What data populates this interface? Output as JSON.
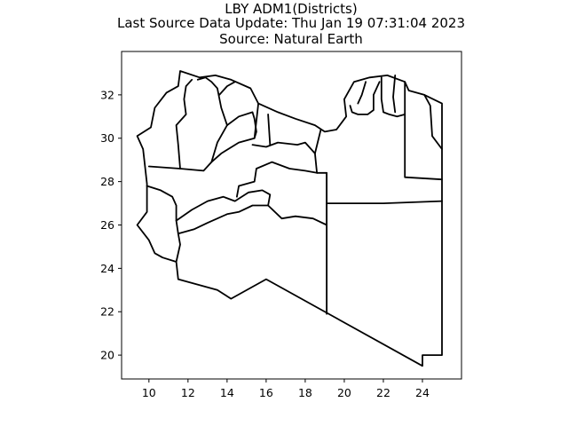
{
  "chart_data": {
    "type": "map",
    "title": [
      "LBY ADM1(Districts)",
      "Last Source Data Update: Thu Jan 19 07:31:04 2023",
      "Source: Natural Earth"
    ],
    "x_ticks": [
      10,
      12,
      14,
      16,
      18,
      20,
      22,
      24
    ],
    "y_ticks": [
      20,
      22,
      24,
      26,
      28,
      30,
      32
    ],
    "xlim": [
      8.6,
      26.0
    ],
    "ylim": [
      18.9,
      34.0
    ],
    "xlabel": "",
    "ylabel": "",
    "grid": false,
    "regions": [
      {
        "id": "outline",
        "coords": [
          [
            9.4,
            30.1
          ],
          [
            10.1,
            30.5
          ],
          [
            10.3,
            31.4
          ],
          [
            10.9,
            32.1
          ],
          [
            11.5,
            32.4
          ],
          [
            11.6,
            33.1
          ],
          [
            12.6,
            32.8
          ],
          [
            13.4,
            32.9
          ],
          [
            14.2,
            32.7
          ],
          [
            15.2,
            32.3
          ],
          [
            15.6,
            31.6
          ],
          [
            16.6,
            31.2
          ],
          [
            17.5,
            30.9
          ],
          [
            18.5,
            30.6
          ],
          [
            19.0,
            30.3
          ],
          [
            19.6,
            30.4
          ],
          [
            20.1,
            31.0
          ],
          [
            20.0,
            31.8
          ],
          [
            20.5,
            32.6
          ],
          [
            21.3,
            32.8
          ],
          [
            22.2,
            32.9
          ],
          [
            23.1,
            32.6
          ],
          [
            23.3,
            32.2
          ],
          [
            24.1,
            32.0
          ],
          [
            25.0,
            31.6
          ],
          [
            25.0,
            22.0
          ],
          [
            25.0,
            20.0
          ],
          [
            24.0,
            20.0
          ],
          [
            24.0,
            19.5
          ],
          [
            16.0,
            23.5
          ],
          [
            14.2,
            22.6
          ],
          [
            13.5,
            23.0
          ],
          [
            11.5,
            23.5
          ],
          [
            11.4,
            24.3
          ],
          [
            10.7,
            24.5
          ],
          [
            10.3,
            24.7
          ],
          [
            10.0,
            25.3
          ],
          [
            9.4,
            26.0
          ],
          [
            9.9,
            26.6
          ],
          [
            9.9,
            27.9
          ],
          [
            9.8,
            28.7
          ],
          [
            9.7,
            29.5
          ],
          [
            9.4,
            30.1
          ]
        ]
      },
      {
        "id": "nw-1",
        "coords": [
          [
            10.0,
            28.7
          ],
          [
            11.6,
            28.6
          ],
          [
            12.8,
            28.5
          ],
          [
            13.2,
            28.9
          ],
          [
            13.7,
            29.3
          ],
          [
            14.6,
            29.8
          ],
          [
            15.4,
            30.0
          ],
          [
            15.6,
            31.6
          ]
        ]
      },
      {
        "id": "nw-2",
        "coords": [
          [
            11.6,
            28.6
          ],
          [
            11.5,
            29.7
          ],
          [
            11.4,
            30.6
          ],
          [
            11.9,
            31.1
          ],
          [
            11.8,
            31.8
          ],
          [
            11.9,
            32.4
          ],
          [
            12.2,
            32.7
          ]
        ]
      },
      {
        "id": "nw-3",
        "coords": [
          [
            13.2,
            28.9
          ],
          [
            13.5,
            29.8
          ],
          [
            14.0,
            30.6
          ],
          [
            14.6,
            31.0
          ],
          [
            15.3,
            31.2
          ],
          [
            15.4,
            30.9
          ],
          [
            15.5,
            30.3
          ],
          [
            15.4,
            30.0
          ]
        ]
      },
      {
        "id": "nw-4",
        "coords": [
          [
            14.0,
            30.6
          ],
          [
            13.7,
            31.4
          ],
          [
            13.5,
            32.3
          ],
          [
            13.2,
            32.6
          ],
          [
            12.9,
            32.8
          ],
          [
            12.5,
            32.7
          ]
        ]
      },
      {
        "id": "nw-5",
        "coords": [
          [
            13.6,
            32.0
          ],
          [
            14.0,
            32.4
          ],
          [
            14.4,
            32.6
          ]
        ]
      },
      {
        "id": "west-mid",
        "coords": [
          [
            9.9,
            27.8
          ],
          [
            10.6,
            27.6
          ],
          [
            11.2,
            27.3
          ],
          [
            11.4,
            26.9
          ],
          [
            11.4,
            26.2
          ],
          [
            11.5,
            25.6
          ],
          [
            11.6,
            25.1
          ],
          [
            11.4,
            24.3
          ]
        ]
      },
      {
        "id": "fezzan-n",
        "coords": [
          [
            11.4,
            26.2
          ],
          [
            12.2,
            26.7
          ],
          [
            13.0,
            27.1
          ],
          [
            13.8,
            27.3
          ],
          [
            14.4,
            27.1
          ],
          [
            15.1,
            27.5
          ],
          [
            15.8,
            27.6
          ],
          [
            16.2,
            27.4
          ],
          [
            16.1,
            26.9
          ],
          [
            16.8,
            26.3
          ],
          [
            17.5,
            26.4
          ],
          [
            18.4,
            26.3
          ],
          [
            19.1,
            26.0
          ],
          [
            19.1,
            28.4
          ]
        ]
      },
      {
        "id": "fezzan-s",
        "coords": [
          [
            11.5,
            25.6
          ],
          [
            12.3,
            25.8
          ],
          [
            13.0,
            26.1
          ],
          [
            13.5,
            26.3
          ],
          [
            14.0,
            26.5
          ],
          [
            14.6,
            26.6
          ],
          [
            15.3,
            26.9
          ],
          [
            16.1,
            26.9
          ]
        ]
      },
      {
        "id": "central-n",
        "coords": [
          [
            14.5,
            27.3
          ],
          [
            14.6,
            27.8
          ],
          [
            15.4,
            28.0
          ],
          [
            15.5,
            28.6
          ],
          [
            16.3,
            28.9
          ],
          [
            17.2,
            28.6
          ],
          [
            18.0,
            28.5
          ],
          [
            18.6,
            28.4
          ],
          [
            19.1,
            28.4
          ],
          [
            19.1,
            21.9
          ]
        ]
      },
      {
        "id": "central-top",
        "coords": [
          [
            15.3,
            29.7
          ],
          [
            16.0,
            29.6
          ],
          [
            16.6,
            29.8
          ],
          [
            17.6,
            29.7
          ],
          [
            18.0,
            29.8
          ],
          [
            18.5,
            29.3
          ],
          [
            18.6,
            28.4
          ]
        ]
      },
      {
        "id": "sirte",
        "coords": [
          [
            16.2,
            29.7
          ],
          [
            16.1,
            31.1
          ]
        ]
      },
      {
        "id": "sirte-2",
        "coords": [
          [
            18.5,
            29.3
          ],
          [
            18.8,
            30.4
          ]
        ]
      },
      {
        "id": "east-mid",
        "coords": [
          [
            19.1,
            27.0
          ],
          [
            22.0,
            27.0
          ],
          [
            25.0,
            27.1
          ]
        ]
      },
      {
        "id": "east-n",
        "coords": [
          [
            23.1,
            32.6
          ],
          [
            23.1,
            28.2
          ],
          [
            25.0,
            28.1
          ]
        ]
      },
      {
        "id": "cyrenaica-1",
        "coords": [
          [
            20.3,
            31.5
          ],
          [
            20.4,
            31.2
          ],
          [
            20.7,
            31.1
          ],
          [
            21.2,
            31.1
          ],
          [
            21.5,
            31.3
          ],
          [
            21.5,
            32.0
          ],
          [
            21.8,
            32.6
          ]
        ]
      },
      {
        "id": "cyrenaica-2",
        "coords": [
          [
            21.1,
            32.6
          ],
          [
            20.9,
            32.0
          ],
          [
            20.7,
            31.6
          ]
        ]
      },
      {
        "id": "cyrenaica-3",
        "coords": [
          [
            21.9,
            32.8
          ],
          [
            21.9,
            31.8
          ],
          [
            22.0,
            31.2
          ],
          [
            22.3,
            31.1
          ],
          [
            22.7,
            31.0
          ],
          [
            23.1,
            31.1
          ]
        ]
      },
      {
        "id": "cyrenaica-4",
        "coords": [
          [
            22.6,
            32.9
          ],
          [
            22.5,
            31.9
          ],
          [
            22.6,
            31.2
          ]
        ]
      },
      {
        "id": "east-s",
        "coords": [
          [
            24.1,
            32.0
          ],
          [
            24.4,
            31.5
          ],
          [
            24.5,
            30.1
          ],
          [
            25.0,
            29.5
          ]
        ]
      }
    ]
  }
}
